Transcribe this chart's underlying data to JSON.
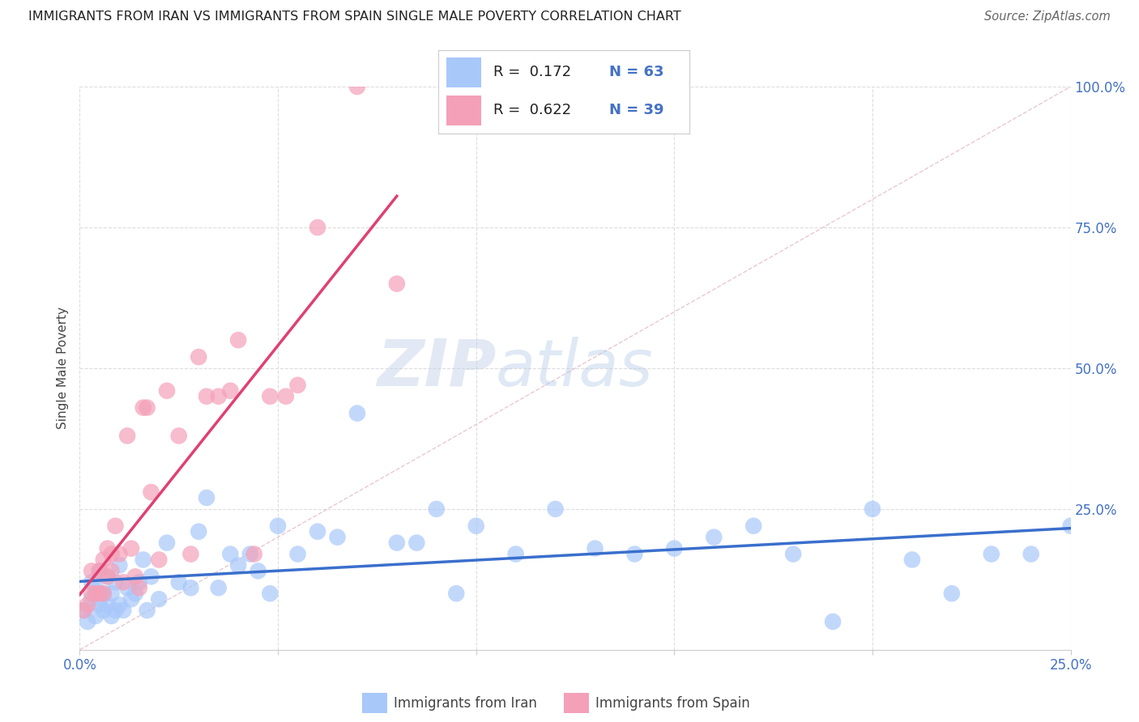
{
  "title": "IMMIGRANTS FROM IRAN VS IMMIGRANTS FROM SPAIN SINGLE MALE POVERTY CORRELATION CHART",
  "source": "Source: ZipAtlas.com",
  "ylabel_label": "Single Male Poverty",
  "x_min": 0.0,
  "x_max": 0.25,
  "y_min": 0.0,
  "y_max": 1.0,
  "x_ticks": [
    0.0,
    0.05,
    0.1,
    0.15,
    0.2,
    0.25
  ],
  "x_tick_labels": [
    "0.0%",
    "",
    "",
    "",
    "",
    "25.0%"
  ],
  "y_ticks": [
    0.0,
    0.25,
    0.5,
    0.75,
    1.0
  ],
  "y_tick_labels_right": [
    "",
    "25.0%",
    "50.0%",
    "75.0%",
    "100.0%"
  ],
  "iran_color": "#a8c8fa",
  "spain_color": "#f4a0b8",
  "iran_line_color": "#3a6fcc",
  "spain_line_color": "#e04070",
  "diagonal_color": "#e8b0c0",
  "legend_r_iran": "R =  0.172",
  "legend_n_iran": "N = 63",
  "legend_r_spain": "R =  0.622",
  "legend_n_spain": "N = 39",
  "watermark_zip": "ZIP",
  "watermark_atlas": "atlas",
  "iran_x": [
    0.001,
    0.002,
    0.003,
    0.003,
    0.004,
    0.004,
    0.005,
    0.005,
    0.006,
    0.006,
    0.007,
    0.007,
    0.008,
    0.008,
    0.009,
    0.009,
    0.01,
    0.01,
    0.011,
    0.012,
    0.013,
    0.014,
    0.015,
    0.016,
    0.017,
    0.018,
    0.02,
    0.022,
    0.025,
    0.028,
    0.03,
    0.032,
    0.035,
    0.038,
    0.04,
    0.043,
    0.045,
    0.048,
    0.05,
    0.055,
    0.06,
    0.065,
    0.07,
    0.08,
    0.085,
    0.09,
    0.095,
    0.1,
    0.11,
    0.12,
    0.13,
    0.14,
    0.15,
    0.16,
    0.17,
    0.18,
    0.19,
    0.2,
    0.21,
    0.22,
    0.23,
    0.24,
    0.25
  ],
  "iran_y": [
    0.07,
    0.05,
    0.09,
    0.12,
    0.06,
    0.11,
    0.08,
    0.14,
    0.07,
    0.1,
    0.08,
    0.13,
    0.06,
    0.1,
    0.07,
    0.12,
    0.08,
    0.15,
    0.07,
    0.11,
    0.09,
    0.1,
    0.12,
    0.16,
    0.07,
    0.13,
    0.09,
    0.19,
    0.12,
    0.11,
    0.21,
    0.27,
    0.11,
    0.17,
    0.15,
    0.17,
    0.14,
    0.1,
    0.22,
    0.17,
    0.21,
    0.2,
    0.42,
    0.19,
    0.19,
    0.25,
    0.1,
    0.22,
    0.17,
    0.25,
    0.18,
    0.17,
    0.18,
    0.2,
    0.22,
    0.17,
    0.05,
    0.25,
    0.16,
    0.1,
    0.17,
    0.17,
    0.22
  ],
  "spain_x": [
    0.001,
    0.002,
    0.003,
    0.003,
    0.004,
    0.005,
    0.005,
    0.006,
    0.006,
    0.007,
    0.007,
    0.008,
    0.008,
    0.009,
    0.01,
    0.011,
    0.012,
    0.013,
    0.014,
    0.015,
    0.016,
    0.017,
    0.018,
    0.02,
    0.022,
    0.025,
    0.028,
    0.03,
    0.032,
    0.035,
    0.038,
    0.04,
    0.044,
    0.048,
    0.052,
    0.055,
    0.06,
    0.07,
    0.08
  ],
  "spain_y": [
    0.07,
    0.08,
    0.1,
    0.14,
    0.1,
    0.1,
    0.14,
    0.1,
    0.16,
    0.13,
    0.18,
    0.14,
    0.17,
    0.22,
    0.17,
    0.12,
    0.38,
    0.18,
    0.13,
    0.11,
    0.43,
    0.43,
    0.28,
    0.16,
    0.46,
    0.38,
    0.17,
    0.52,
    0.45,
    0.45,
    0.46,
    0.55,
    0.17,
    0.45,
    0.45,
    0.47,
    0.75,
    1.0,
    0.65
  ]
}
